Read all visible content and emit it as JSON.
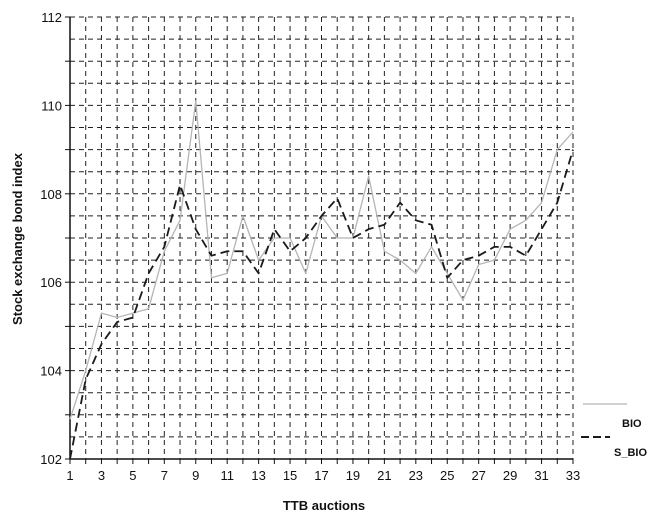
{
  "chart_data": {
    "type": "line",
    "xlabel": "TTB auctions",
    "ylabel": "Stock exchange bond index",
    "xlim": [
      1,
      33
    ],
    "ylim": [
      102,
      112
    ],
    "x_tick_labels": [
      "1",
      "3",
      "5",
      "7",
      "9",
      "11",
      "13",
      "15",
      "17",
      "19",
      "21",
      "23",
      "25",
      "27",
      "29",
      "31",
      "33"
    ],
    "y_tick_labels": [
      "102",
      "104",
      "106",
      "108",
      "110",
      "112"
    ],
    "grid": true,
    "legend_position": "bottom-right outside",
    "x": [
      1,
      2,
      3,
      4,
      5,
      6,
      7,
      8,
      9,
      10,
      11,
      12,
      13,
      14,
      15,
      16,
      17,
      18,
      19,
      20,
      21,
      22,
      23,
      24,
      25,
      26,
      27,
      28,
      29,
      30,
      31,
      32,
      33
    ],
    "series": [
      {
        "name": "BIO",
        "color": "#b5b5b5",
        "dash": "solid",
        "values": [
          102.9,
          104.0,
          105.3,
          105.2,
          105.3,
          105.4,
          106.7,
          107.4,
          110.1,
          106.1,
          106.2,
          107.5,
          106.5,
          107.0,
          107.0,
          106.2,
          107.5,
          107.0,
          107.0,
          108.4,
          106.7,
          106.5,
          106.2,
          106.8,
          106.2,
          105.6,
          106.4,
          106.5,
          107.2,
          107.4,
          107.8,
          109.0,
          109.4
        ]
      },
      {
        "name": "S_BIO",
        "color": "#1a1a1a",
        "dash": "dashed",
        "values": [
          102.0,
          103.8,
          104.6,
          105.1,
          105.2,
          106.2,
          106.8,
          108.2,
          107.2,
          106.6,
          106.7,
          106.7,
          106.2,
          107.2,
          106.7,
          107.0,
          107.5,
          107.9,
          107.0,
          107.2,
          107.3,
          107.8,
          107.4,
          107.3,
          106.1,
          106.5,
          106.6,
          106.8,
          106.8,
          106.6,
          107.2,
          107.8,
          109.0
        ]
      }
    ]
  }
}
